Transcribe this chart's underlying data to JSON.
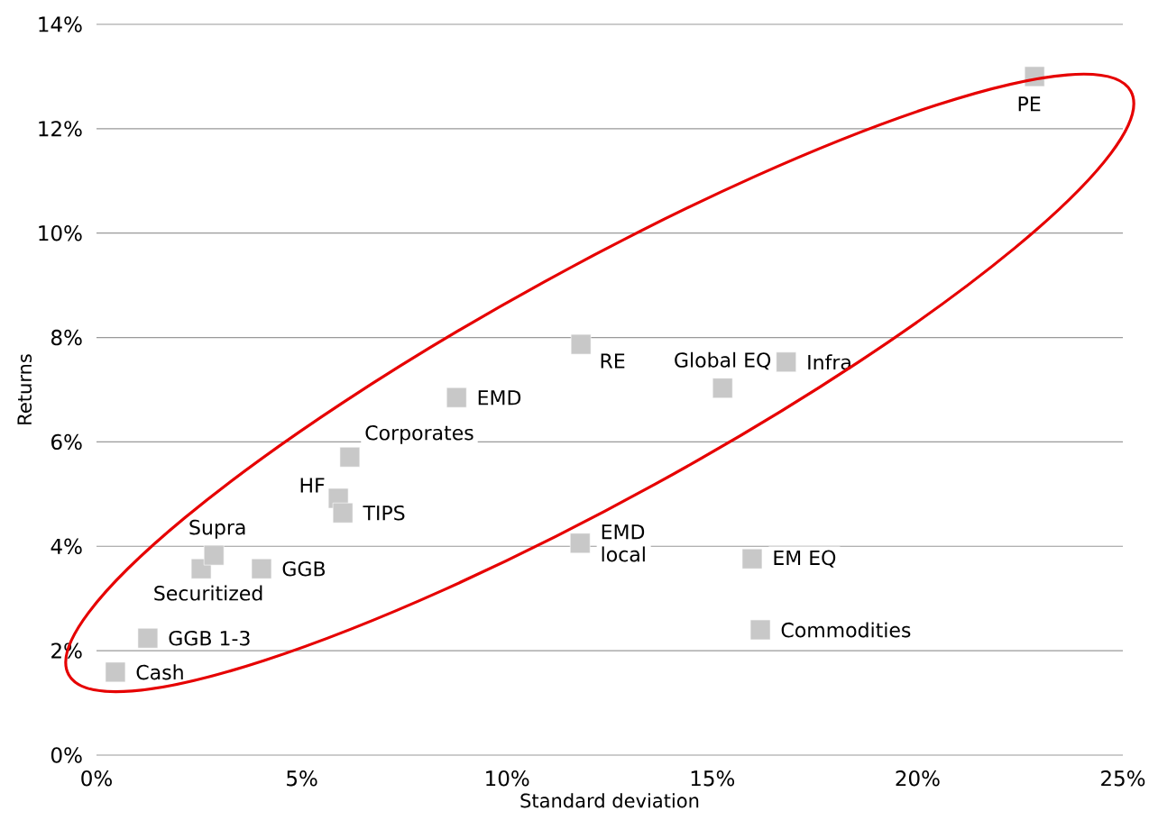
{
  "chart_data": {
    "type": "scatter",
    "xlabel": "Standard deviation",
    "ylabel": "Returns",
    "x": [
      0.46,
      1.25,
      2.55,
      2.86,
      4.02,
      5.89,
      6.0,
      6.17,
      8.77,
      11.8,
      11.78,
      15.25,
      16.8,
      15.97,
      16.17,
      22.85
    ],
    "values": [
      1.59,
      2.24,
      3.57,
      3.83,
      3.57,
      4.92,
      4.64,
      5.71,
      6.85,
      7.87,
      4.06,
      7.03,
      7.53,
      3.76,
      2.4,
      13.0
    ],
    "color": "#c8c8c8",
    "marker": "square",
    "grid": "y",
    "xlim": [
      0,
      25
    ],
    "ylim": [
      0,
      14
    ],
    "xticks": [
      {
        "value": 0,
        "label": "0%"
      },
      {
        "value": 5,
        "label": "5%"
      },
      {
        "value": 10,
        "label": "10%"
      },
      {
        "value": 15,
        "label": "15%"
      },
      {
        "value": 20,
        "label": "20%"
      },
      {
        "value": 25,
        "label": "25%"
      }
    ],
    "yticks": [
      {
        "value": 0,
        "label": "0%"
      },
      {
        "value": 2,
        "label": "2%"
      },
      {
        "value": 4,
        "label": "4%"
      },
      {
        "value": 6,
        "label": "6%"
      },
      {
        "value": 8,
        "label": "8%"
      },
      {
        "value": 10,
        "label": "10%"
      },
      {
        "value": 12,
        "label": "12%"
      },
      {
        "value": 14,
        "label": "14%"
      }
    ],
    "annotations": [
      {
        "text": "Cash",
        "x": 0.46,
        "y": 1.59
      },
      {
        "text": "GGB 1-3",
        "x": 1.25,
        "y": 2.24
      },
      {
        "text": "Securitized",
        "x": 2.55,
        "y": 3.57
      },
      {
        "text": "Supra",
        "x": 2.86,
        "y": 3.83
      },
      {
        "text": "GGB",
        "x": 4.02,
        "y": 3.57
      },
      {
        "text": "HF",
        "x": 5.89,
        "y": 4.92
      },
      {
        "text": "TIPS",
        "x": 6.0,
        "y": 4.64
      },
      {
        "text": "Corporates",
        "x": 6.17,
        "y": 5.71
      },
      {
        "text": "EMD",
        "x": 8.77,
        "y": 6.85
      },
      {
        "text": "RE",
        "x": 11.8,
        "y": 7.87
      },
      {
        "text": "EMD local",
        "x": 11.78,
        "y": 4.06
      },
      {
        "text": "Global EQ",
        "x": 15.25,
        "y": 7.03
      },
      {
        "text": "Infra",
        "x": 16.8,
        "y": 7.53
      },
      {
        "text": "EM EQ",
        "x": 15.97,
        "y": 3.76
      },
      {
        "text": "Commodities",
        "x": 16.17,
        "y": 2.4
      },
      {
        "text": "PE",
        "x": 22.85,
        "y": 13.0
      }
    ]
  }
}
